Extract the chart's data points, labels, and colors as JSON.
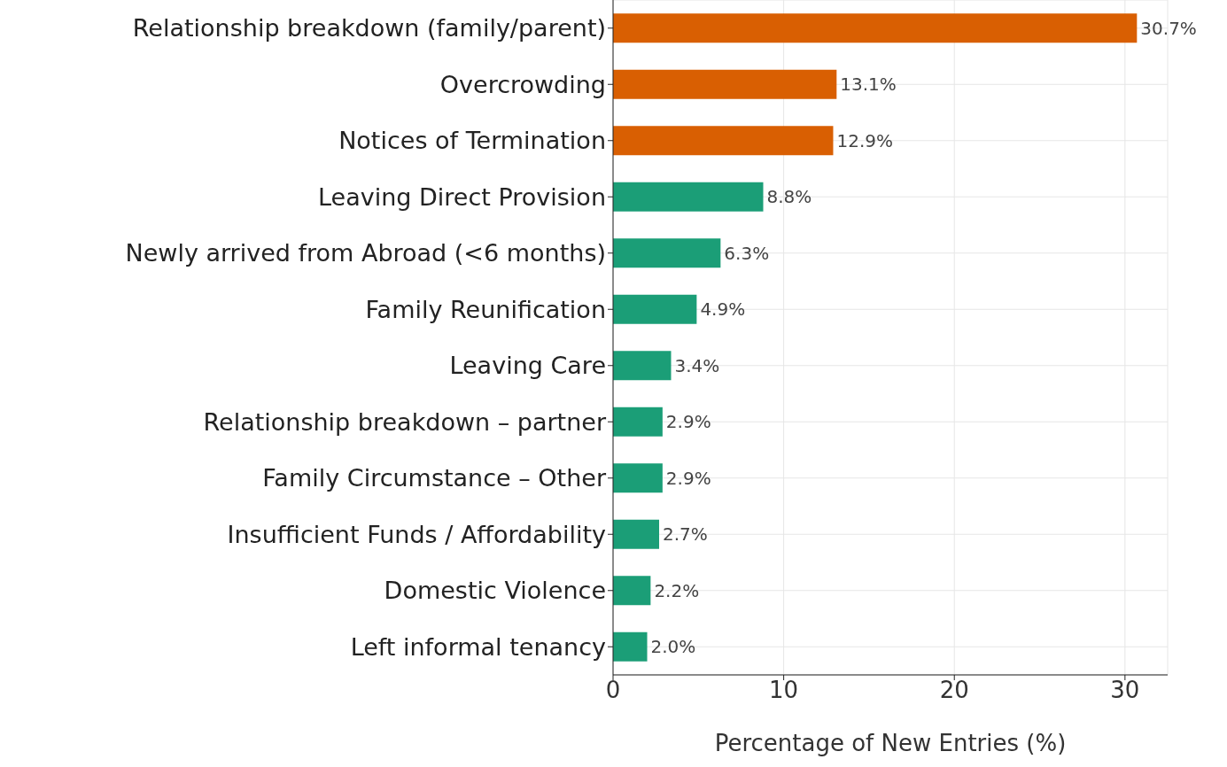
{
  "chart_data": {
    "type": "bar",
    "orientation": "horizontal",
    "categories": [
      "Relationship breakdown (family/parent)",
      "Overcrowding",
      "Notices of Termination",
      "Leaving Direct Provision",
      "Newly arrived from Abroad (<6 months)",
      "Family Reunification",
      "Leaving Care",
      "Relationship breakdown – partner",
      "Family Circumstance – Other",
      "Insufficient Funds / Affordability",
      "Domestic Violence",
      "Left informal tenancy"
    ],
    "values": [
      30.7,
      13.1,
      12.9,
      8.8,
      6.3,
      4.9,
      3.4,
      2.9,
      2.9,
      2.7,
      2.2,
      2.0
    ],
    "value_labels": [
      "30.7%",
      "13.1%",
      "12.9%",
      "8.8%",
      "6.3%",
      "4.9%",
      "3.4%",
      "2.9%",
      "2.9%",
      "2.7%",
      "2.2%",
      "2.0%"
    ],
    "colors": [
      "#d95f02",
      "#d95f02",
      "#d95f02",
      "#1b9e77",
      "#1b9e77",
      "#1b9e77",
      "#1b9e77",
      "#1b9e77",
      "#1b9e77",
      "#1b9e77",
      "#1b9e77",
      "#1b9e77"
    ],
    "xlabel": "Percentage of New Entries (%)",
    "xlim": [
      0,
      32.5
    ],
    "xticks": [
      0,
      10,
      20,
      30
    ],
    "grid": true
  }
}
